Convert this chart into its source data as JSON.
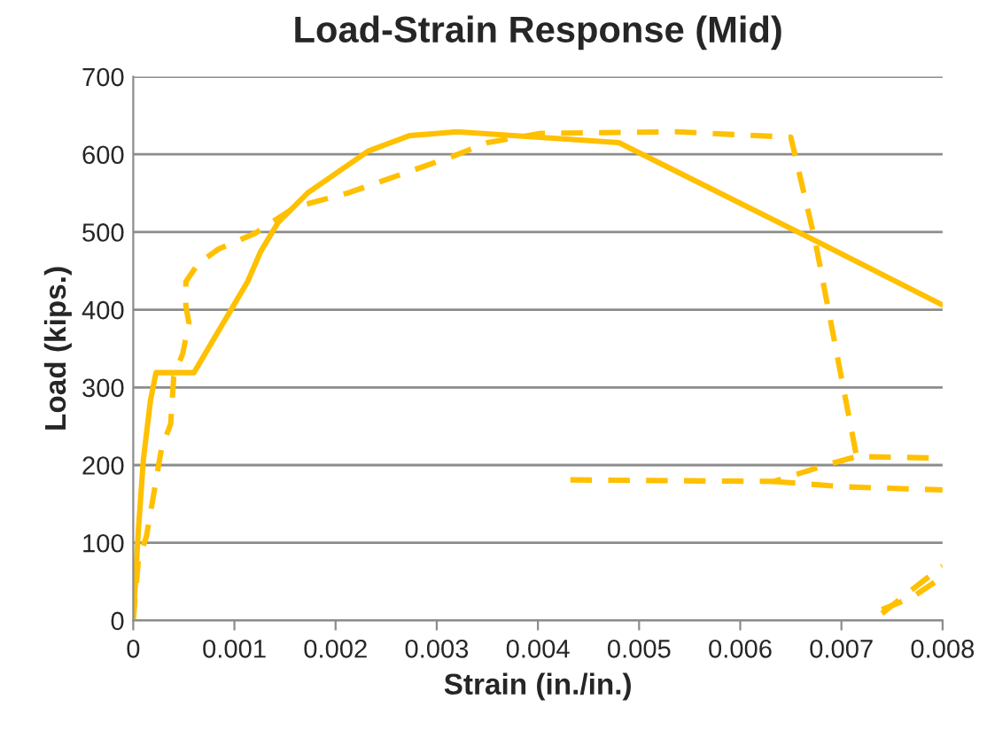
{
  "chart_data": {
    "type": "line",
    "title": "Load-Strain Response (Mid)",
    "xlabel": "Strain (in./in.)",
    "ylabel": "Load (kips.)",
    "xlim": [
      0,
      0.008
    ],
    "xticks": [
      0,
      0.001,
      0.002,
      0.003,
      0.004,
      0.005,
      0.006,
      0.007,
      0.008
    ],
    "ylim": [
      0,
      700
    ],
    "yticks": [
      0,
      100,
      200,
      300,
      400,
      500,
      600,
      700
    ],
    "grid": "y",
    "legend": false,
    "series": [
      {
        "color": "#ffc000",
        "line_style": "solid",
        "x": [
          0,
          5e-05,
          0.0001,
          0.00017,
          0.000225,
          0.0006,
          0.00113,
          0.00126,
          0.00143,
          0.00173,
          0.00232,
          0.00273,
          0.0032,
          0.0048,
          0.00674,
          0.008
        ],
        "values": [
          0,
          115,
          207,
          283,
          319,
          319,
          436,
          475,
          512,
          551,
          604,
          624,
          629,
          615,
          489,
          406
        ]
      },
      {
        "color": "#ffc000",
        "line_style": "dashed",
        "x": [
          0,
          5e-05,
          0.00013,
          0.00022,
          0.00028,
          0.00037,
          0.0004,
          0.00049,
          0.00055,
          0.00052,
          0.00052,
          0.00064,
          0.00084,
          0.0012,
          0.0016,
          0.00214,
          0.00273,
          0.00315,
          0.0035,
          0.00403,
          0.00538,
          0.0065,
          0.00674,
          0.00715,
          0.008
        ],
        "values": [
          0,
          77,
          108,
          176,
          222,
          253,
          313,
          344,
          383,
          405,
          436,
          459,
          478,
          498,
          532,
          551,
          578,
          597,
          615,
          627,
          629,
          622,
          489,
          211,
          209
        ]
      },
      {
        "color": "#ffc000",
        "line_style": "dashed",
        "x": [
          0.00432,
          0.00633,
          0.0069,
          0.00715
        ],
        "values": [
          181,
          179,
          202,
          211
        ]
      },
      {
        "color": "#ffc000",
        "line_style": "dashed",
        "x": [
          0.00633,
          0.00705,
          0.008
        ],
        "values": [
          179,
          172,
          168
        ]
      },
      {
        "color": "#ffc000",
        "line_style": "dashed",
        "x": [
          0.0074,
          0.0077,
          0.008
        ],
        "values": [
          9,
          40,
          70
        ]
      },
      {
        "color": "#ffc000",
        "line_style": "dashed",
        "x": [
          0.0074,
          0.0077,
          0.008
        ],
        "values": [
          14,
          30,
          56
        ]
      }
    ]
  }
}
